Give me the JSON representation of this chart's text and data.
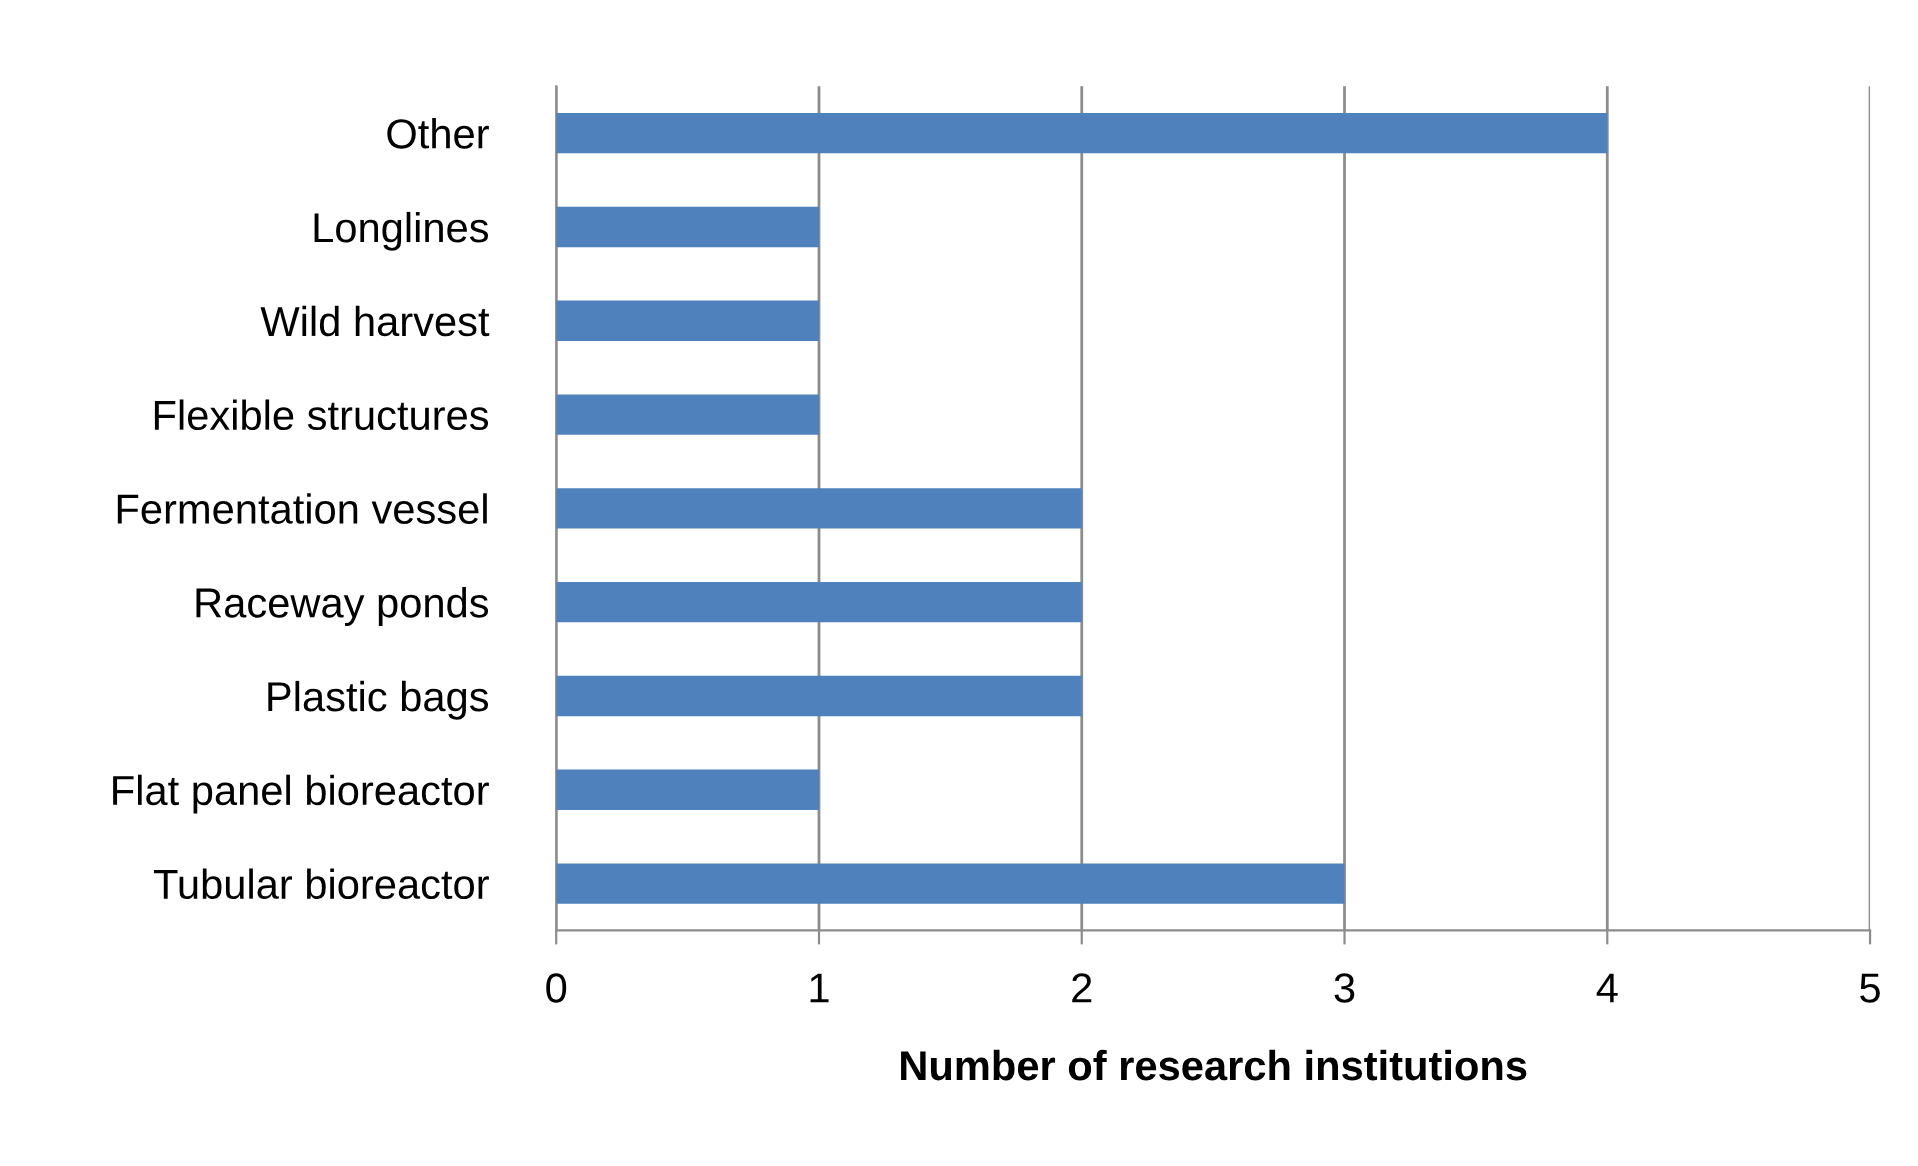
{
  "chart_data": {
    "type": "bar",
    "orientation": "horizontal",
    "xlabel": "Number of research institutions",
    "categories": [
      "Other",
      "Longlines",
      "Wild harvest",
      "Flexible structures",
      "Fermentation vessel",
      "Raceway ponds",
      "Plastic bags",
      "Flat panel bioreactor",
      "Tubular bioreactor"
    ],
    "values": [
      4,
      1,
      1,
      1,
      2,
      2,
      2,
      1,
      3
    ],
    "color": "#4f81bd",
    "xlim": [
      0,
      5
    ],
    "xticks": [
      0,
      1,
      2,
      3,
      4,
      5
    ],
    "grid": "x",
    "legend": false
  }
}
